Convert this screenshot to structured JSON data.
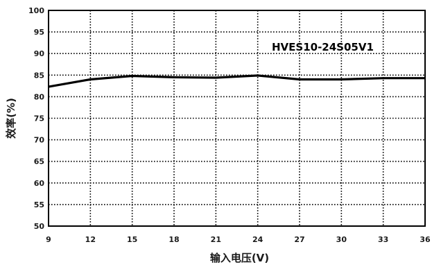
{
  "chart_data": {
    "type": "line",
    "title": "",
    "xlabel": "输入电压(V)",
    "ylabel": "效率(%)",
    "xlim": [
      9,
      36
    ],
    "ylim": [
      50,
      100
    ],
    "xticks": [
      9,
      12,
      15,
      18,
      21,
      24,
      27,
      30,
      33,
      36
    ],
    "yticks": [
      50,
      55,
      60,
      65,
      70,
      75,
      80,
      85,
      90,
      95,
      100
    ],
    "grid": true,
    "grid_style": "dotted",
    "legend": "none",
    "annotations": [
      "HVES10-24S05V1"
    ],
    "series": [
      {
        "x": [
          9,
          12,
          15,
          18,
          21,
          24,
          27,
          30,
          33,
          36
        ],
        "y": [
          82.3,
          84.0,
          84.8,
          84.5,
          84.4,
          84.9,
          84.0,
          84.0,
          84.3,
          84.3
        ],
        "color": "#000000"
      }
    ]
  }
}
